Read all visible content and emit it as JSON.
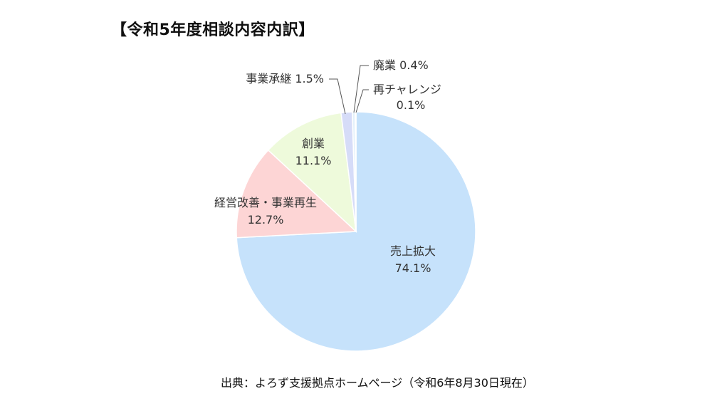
{
  "title": "【令和5年度相談内容内訳】",
  "source": "出典：よろず支援拠点ホームページ（令和6年8月30日現在）",
  "chart_data": {
    "type": "pie",
    "title": "【令和5年度相談内容内訳】",
    "start_angle_deg": 0,
    "direction": "clockwise",
    "slices": [
      {
        "label": "売上拡大",
        "value": 74.1,
        "value_text": "74.1%",
        "color": "#c6e2fb"
      },
      {
        "label": "経営改善・事業再生",
        "value": 12.7,
        "value_text": "12.7%",
        "color": "#fdd5d5"
      },
      {
        "label": "創業",
        "value": 11.1,
        "value_text": "11.1%",
        "color": "#eefadb"
      },
      {
        "label": "事業承継",
        "value": 1.5,
        "value_text": "1.5%",
        "color": "#d6dcf8"
      },
      {
        "label": "廃業",
        "value": 0.4,
        "value_text": "0.4%",
        "color": "#e4f1fb"
      },
      {
        "label": "再チャレンジ",
        "value": 0.1,
        "value_text": "0.1%",
        "color": "#f5f0fa"
      }
    ]
  }
}
